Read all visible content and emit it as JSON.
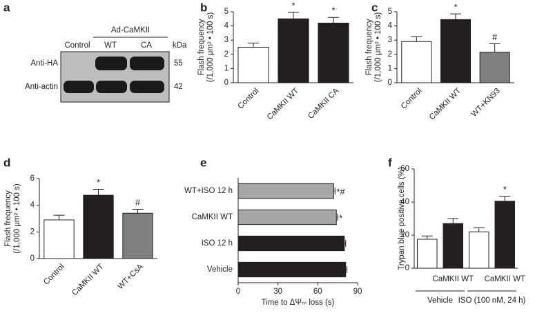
{
  "panel_labels": [
    "a",
    "b",
    "c",
    "d",
    "e",
    "f"
  ],
  "blot": {
    "group_label": "Ad-CaMKII",
    "lanes": [
      "Control",
      "WT",
      "CA"
    ],
    "unit": "kDa",
    "rows": [
      {
        "label": "Anti-HA",
        "kda": 55
      },
      {
        "label": "Anti-actin",
        "kda": 42
      }
    ]
  },
  "chart_data": [
    {
      "type": "bar",
      "categories": [
        "Control",
        "CaMKII WT",
        "CaMKII CA"
      ],
      "values": [
        2.5,
        4.5,
        4.2
      ],
      "errors": [
        0.3,
        0.45,
        0.4
      ],
      "annotations": [
        null,
        "*",
        "*"
      ],
      "colors": [
        "#ffffff",
        "#231f20",
        "#231f20"
      ],
      "y_label": [
        "Flash frequency",
        "(/1,000 μm² • 100 s)"
      ],
      "ylim": [
        0,
        5
      ],
      "yticks": [
        0,
        1,
        2,
        3,
        4,
        5
      ]
    },
    {
      "type": "bar",
      "categories": [
        "Control",
        "CaMKII WT",
        "WT+KN93"
      ],
      "values": [
        2.9,
        4.45,
        2.15
      ],
      "errors": [
        0.35,
        0.4,
        0.6
      ],
      "annotations": [
        null,
        "*",
        "#"
      ],
      "colors": [
        "#ffffff",
        "#231f20",
        "#808080"
      ],
      "y_label": [
        "Flash frequency",
        "(/1,000 μm² • 100 s)"
      ],
      "ylim": [
        0,
        5
      ],
      "yticks": [
        0,
        1,
        2,
        3,
        4,
        5
      ]
    },
    {
      "type": "bar",
      "categories": [
        "Control",
        "CaMKII WT",
        "WT+CsA"
      ],
      "values": [
        2.9,
        4.75,
        3.4
      ],
      "errors": [
        0.35,
        0.45,
        0.3
      ],
      "annotations": [
        null,
        "*",
        "#"
      ],
      "colors": [
        "#ffffff",
        "#231f20",
        "#808080"
      ],
      "y_label": [
        "Flash frequency",
        "(/1,000 μm² • 100 s)"
      ],
      "ylim": [
        0,
        6
      ],
      "yticks": [
        0,
        2,
        4,
        6
      ]
    },
    {
      "type": "hbar",
      "categories": [
        "WT+ISO 12 h",
        "CaMKII WT",
        "ISO 12 h",
        "Vehicle"
      ],
      "values": [
        72,
        74,
        80,
        81
      ],
      "errors": [
        1,
        1,
        1,
        1
      ],
      "annotations": [
        "*#",
        "*",
        null,
        null
      ],
      "colors": [
        "#a6a6a6",
        "#a6a6a6",
        "#231f20",
        "#231f20"
      ],
      "x_label": "Time to ΔΨₘ loss (s)",
      "xlim": [
        0,
        90
      ],
      "xticks": [
        0,
        30,
        60,
        90
      ]
    },
    {
      "type": "bar",
      "categories": [
        null,
        "CaMKII WT",
        null,
        "CaMKII WT"
      ],
      "values": [
        17.5,
        27,
        22,
        40.5
      ],
      "errors": [
        2,
        3,
        2.5,
        3
      ],
      "annotations": [
        null,
        null,
        null,
        "*"
      ],
      "colors": [
        "#ffffff",
        "#231f20",
        "#ffffff",
        "#231f20"
      ],
      "groups": [
        "Vehicle",
        "ISO (100 nM, 24 h)"
      ],
      "y_label": [
        "Trypan blue positive cells (%)"
      ],
      "ylim": [
        0,
        60
      ],
      "yticks": [
        0,
        20,
        40,
        60
      ]
    }
  ]
}
